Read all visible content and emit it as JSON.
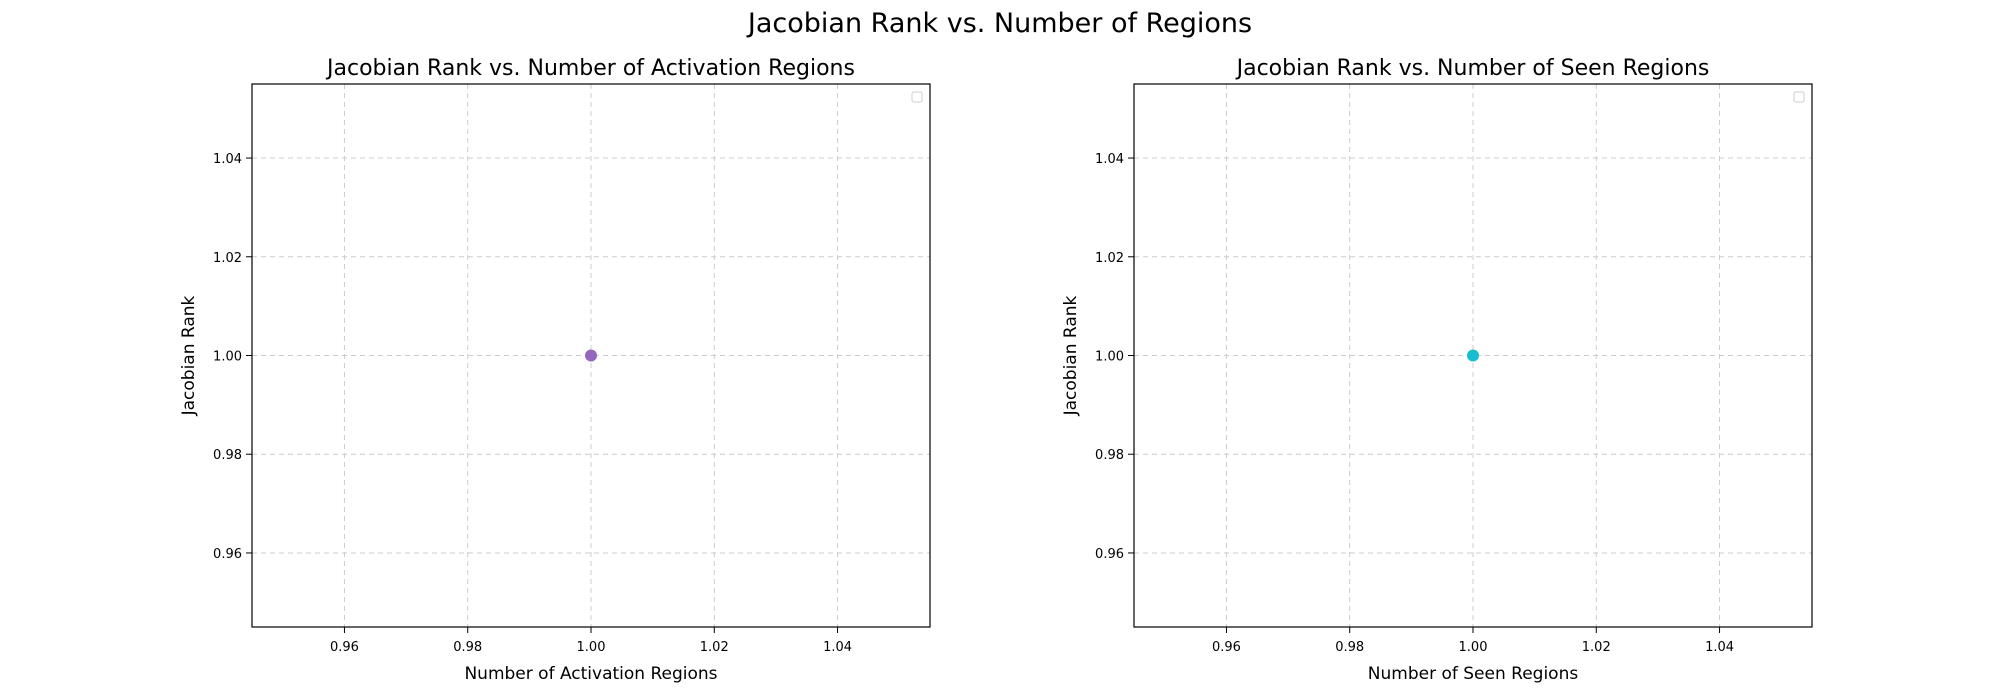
{
  "figure": {
    "title": "Jacobian Rank vs. Number of Regions"
  },
  "chart_data": [
    {
      "type": "scatter",
      "title": "Jacobian Rank vs. Number of Activation Regions",
      "xlabel": "Number of Activation Regions",
      "ylabel": "Jacobian Rank",
      "xlim": [
        0.945,
        1.055
      ],
      "ylim": [
        0.945,
        1.055
      ],
      "xticks": [
        0.96,
        0.98,
        1.0,
        1.02,
        1.04
      ],
      "yticks": [
        0.96,
        0.98,
        1.0,
        1.02,
        1.04
      ],
      "xtick_labels": [
        "0.96",
        "0.98",
        "1.00",
        "1.02",
        "1.04"
      ],
      "ytick_labels": [
        "0.96",
        "0.98",
        "1.00",
        "1.02",
        "1.04"
      ],
      "grid": true,
      "legend": "upper-right (empty)",
      "series": [
        {
          "color": "#9467bd",
          "points": [
            {
              "x": 1.0,
              "y": 1.0
            }
          ]
        }
      ]
    },
    {
      "type": "scatter",
      "title": "Jacobian Rank vs. Number of Seen Regions",
      "xlabel": "Number of Seen Regions",
      "ylabel": "Jacobian Rank",
      "xlim": [
        0.945,
        1.055
      ],
      "ylim": [
        0.945,
        1.055
      ],
      "xticks": [
        0.96,
        0.98,
        1.0,
        1.02,
        1.04
      ],
      "yticks": [
        0.96,
        0.98,
        1.0,
        1.02,
        1.04
      ],
      "xtick_labels": [
        "0.96",
        "0.98",
        "1.00",
        "1.02",
        "1.04"
      ],
      "ytick_labels": [
        "0.96",
        "0.98",
        "1.00",
        "1.02",
        "1.04"
      ],
      "grid": true,
      "legend": "upper-right (empty)",
      "series": [
        {
          "color": "#17becf",
          "points": [
            {
              "x": 1.0,
              "y": 1.0
            }
          ]
        }
      ]
    }
  ]
}
